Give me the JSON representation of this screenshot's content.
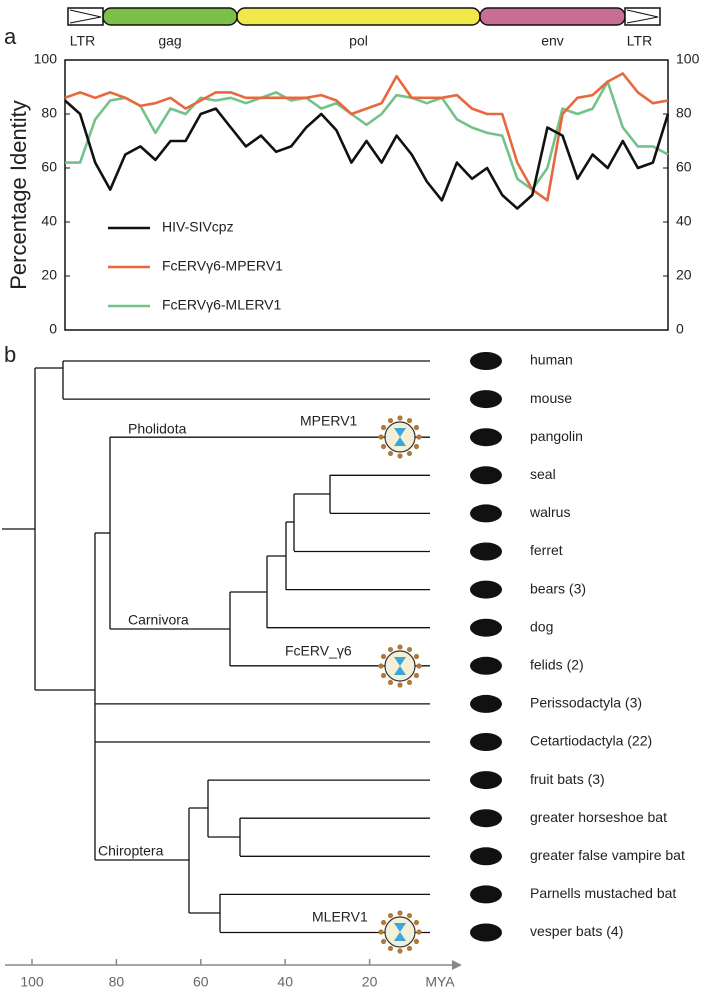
{
  "chart_data": {
    "type": "line",
    "panel": "a",
    "ylabel": "Percentage Identity",
    "ylim": [
      0,
      100
    ],
    "yticks": [
      0,
      20,
      40,
      60,
      80,
      100
    ],
    "genome": [
      {
        "label": "LTR",
        "color": "#ffffff"
      },
      {
        "label": "gag",
        "color": "#7cc04a"
      },
      {
        "label": "pol",
        "color": "#f1e84a"
      },
      {
        "label": "env",
        "color": "#c86e95"
      },
      {
        "label": "LTR",
        "color": "#ffffff"
      }
    ],
    "series": [
      {
        "name": "HIV-SIVcpz",
        "color": "#111111",
        "values": [
          85,
          80,
          62,
          52,
          65,
          68,
          63,
          70,
          70,
          80,
          82,
          75,
          68,
          72,
          66,
          68,
          75,
          80,
          74,
          62,
          70,
          62,
          72,
          65,
          55,
          48,
          62,
          56,
          60,
          50,
          45,
          50,
          75,
          72,
          56,
          65,
          60,
          70,
          60,
          62,
          80
        ]
      },
      {
        "name": "FcERVγ6-MPERV1",
        "color": "#e8683e",
        "values": [
          86,
          88,
          86,
          88,
          86,
          83,
          84,
          86,
          82,
          85,
          88,
          88,
          86,
          86,
          86,
          86,
          86,
          87,
          85,
          80,
          82,
          84,
          94,
          86,
          86,
          86,
          87,
          82,
          80,
          80,
          62,
          52,
          48,
          80,
          86,
          87,
          92,
          95,
          88,
          84,
          85
        ]
      },
      {
        "name": "FcERVγ6-MLERV1",
        "color": "#72c28a",
        "values": [
          62,
          62,
          78,
          85,
          86,
          83,
          73,
          82,
          80,
          86,
          85,
          86,
          84,
          86,
          88,
          85,
          86,
          82,
          84,
          80,
          76,
          80,
          87,
          86,
          84,
          86,
          78,
          75,
          73,
          72,
          56,
          52,
          60,
          82,
          80,
          82,
          92,
          75,
          68,
          68,
          65
        ]
      }
    ]
  },
  "tree": {
    "panel": "b",
    "leaves": [
      "human",
      "mouse",
      "pangolin",
      "seal",
      "walrus",
      "ferret",
      "bears (3)",
      "dog",
      "felids (2)",
      "Perissodactyla (3)",
      "Cetartiodactyla (22)",
      "fruit bats (3)",
      "greater horseshoe bat",
      "greater false vampire bat",
      "Parnells mustached bat",
      "vesper bats (4)"
    ],
    "clades": [
      "Pholidota",
      "Carnivora",
      "Chiroptera"
    ],
    "viruses": [
      "MPERV1",
      "FcERV_γ6",
      "MLERV1"
    ],
    "axis": {
      "lim": [
        100,
        0
      ],
      "ticks": [
        100,
        80,
        60,
        40,
        20
      ],
      "unit": "MYA"
    }
  }
}
